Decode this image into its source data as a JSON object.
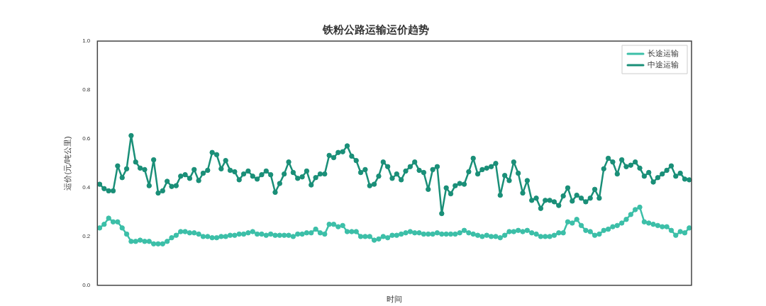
{
  "chart_data": {
    "type": "line",
    "title": "铁粉公路运输运价趋势",
    "xlabel": "时间",
    "ylabel": "运价(元/吨公里)",
    "categories": [
      null,
      null,
      null,
      null,
      null,
      null,
      null,
      null,
      null,
      null,
      null,
      null,
      null,
      null,
      null,
      null,
      null,
      null,
      null,
      null,
      null,
      null,
      null,
      null,
      null,
      null,
      null,
      null,
      null,
      null,
      null,
      null,
      null,
      null,
      null,
      null,
      null,
      null,
      null,
      null,
      null,
      null,
      null,
      null,
      null,
      null,
      null,
      null,
      null,
      null,
      null,
      null,
      null,
      null,
      null,
      null,
      null,
      null,
      null,
      null,
      null,
      null,
      null,
      null,
      null,
      null,
      null,
      null,
      null,
      null,
      null,
      null,
      null,
      null,
      null,
      null,
      null,
      null,
      null,
      null,
      null,
      null,
      null,
      null,
      null,
      null,
      null,
      null,
      null,
      null,
      null,
      null,
      null,
      null,
      null,
      null,
      null,
      null,
      null,
      null,
      null,
      null,
      null,
      null,
      null,
      null,
      null,
      null,
      null,
      null,
      null,
      null,
      null,
      null,
      null,
      null,
      null,
      null,
      null,
      null,
      null,
      null,
      null,
      null,
      null,
      null,
      null,
      null,
      null,
      null,
      null,
      null
    ],
    "series": [
      {
        "name": "长途运输",
        "color": "#3cbfa8",
        "values": [
          0.235,
          0.25,
          0.275,
          0.26,
          0.26,
          0.235,
          0.21,
          0.18,
          0.18,
          0.185,
          0.18,
          0.18,
          0.17,
          0.17,
          0.17,
          0.18,
          0.195,
          0.205,
          0.22,
          0.22,
          0.215,
          0.215,
          0.21,
          0.2,
          0.2,
          0.195,
          0.195,
          0.2,
          0.2,
          0.205,
          0.205,
          0.21,
          0.21,
          0.215,
          0.22,
          0.21,
          0.21,
          0.205,
          0.21,
          0.205,
          0.205,
          0.205,
          0.205,
          0.2,
          0.21,
          0.21,
          0.215,
          0.215,
          0.23,
          0.215,
          0.21,
          0.25,
          0.25,
          0.24,
          0.245,
          0.22,
          0.22,
          0.22,
          0.2,
          0.2,
          0.2,
          0.185,
          0.19,
          0.2,
          0.195,
          0.205,
          0.205,
          0.21,
          0.215,
          0.22,
          0.215,
          0.215,
          0.21,
          0.21,
          0.21,
          0.215,
          0.21,
          0.21,
          0.21,
          0.21,
          0.215,
          0.225,
          0.215,
          0.21,
          0.205,
          0.2,
          0.205,
          0.2,
          0.2,
          0.195,
          0.205,
          0.22,
          0.22,
          0.225,
          0.22,
          0.225,
          0.215,
          0.21,
          0.2,
          0.2,
          0.2,
          0.205,
          0.215,
          0.215,
          0.26,
          0.255,
          0.27,
          0.245,
          0.225,
          0.22,
          0.205,
          0.21,
          0.225,
          0.23,
          0.24,
          0.245,
          0.255,
          0.27,
          0.29,
          0.31,
          0.32,
          0.26,
          0.255,
          0.25,
          0.245,
          0.24,
          0.24,
          0.225,
          0.205,
          0.22,
          0.215,
          0.235
        ]
      },
      {
        "name": "中途运输",
        "color": "#1a8f78",
        "values": [
          0.414,
          0.396,
          0.387,
          0.387,
          0.489,
          0.441,
          0.477,
          0.613,
          0.505,
          0.48,
          0.474,
          0.408,
          0.514,
          0.378,
          0.387,
          0.426,
          0.405,
          0.408,
          0.447,
          0.453,
          0.438,
          0.474,
          0.429,
          0.459,
          0.471,
          0.544,
          0.535,
          0.477,
          0.511,
          0.471,
          0.465,
          0.432,
          0.456,
          0.468,
          0.447,
          0.435,
          0.453,
          0.468,
          0.453,
          0.381,
          0.417,
          0.456,
          0.505,
          0.462,
          0.438,
          0.444,
          0.468,
          0.411,
          0.441,
          0.456,
          0.456,
          0.532,
          0.523,
          0.544,
          0.547,
          0.571,
          0.529,
          0.511,
          0.462,
          0.474,
          0.408,
          0.414,
          0.447,
          0.505,
          0.486,
          0.438,
          0.456,
          0.432,
          0.468,
          0.486,
          0.505,
          0.471,
          0.462,
          0.393,
          0.474,
          0.486,
          0.294,
          0.399,
          0.375,
          0.408,
          0.417,
          0.414,
          0.465,
          0.52,
          0.456,
          0.474,
          0.48,
          0.486,
          0.499,
          0.369,
          0.45,
          0.429,
          0.505,
          0.459,
          0.378,
          0.429,
          0.348,
          0.357,
          0.315,
          0.348,
          0.348,
          0.342,
          0.327,
          0.366,
          0.399,
          0.345,
          0.369,
          0.357,
          0.342,
          0.357,
          0.393,
          0.357,
          0.477,
          0.52,
          0.505,
          0.456,
          0.514,
          0.486,
          0.492,
          0.505,
          0.48,
          0.447,
          0.462,
          0.423,
          0.441,
          0.456,
          0.471,
          0.489,
          0.447,
          0.459,
          0.435,
          0.432
        ]
      }
    ],
    "ylim": [
      0,
      1
    ],
    "yticks": [
      {
        "value": 0,
        "label": "0.0"
      },
      {
        "value": 0.2,
        "label": "0.2"
      },
      {
        "value": 0.4,
        "label": "0.4"
      },
      {
        "value": 0.6,
        "label": "0.6"
      },
      {
        "value": 0.8,
        "label": "0.8"
      },
      {
        "value": 1,
        "label": "1.0"
      }
    ],
    "grid": false,
    "legend": "top right",
    "marker": "circle",
    "line_style": "solid"
  }
}
